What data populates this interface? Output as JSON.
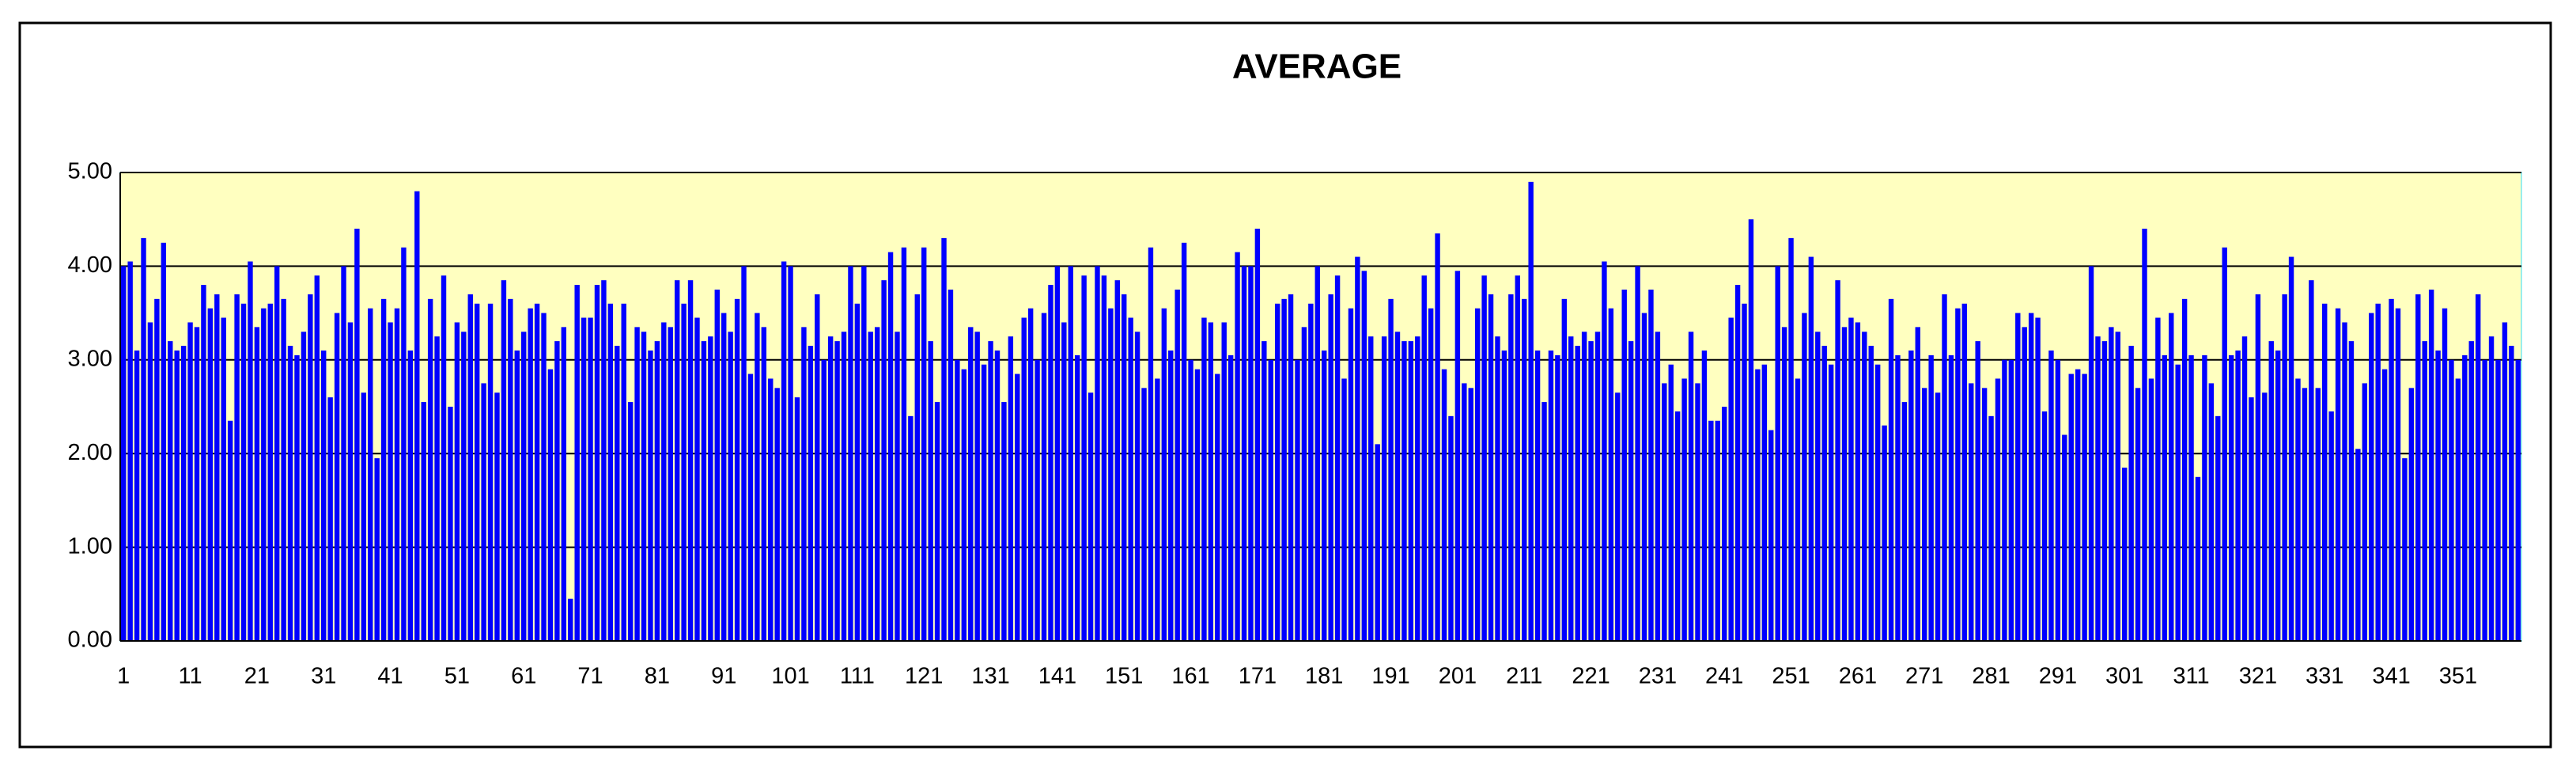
{
  "chart_data": {
    "type": "bar",
    "title": "AVERAGE",
    "categories": [
      "1",
      null,
      null,
      null,
      null,
      null,
      null,
      null,
      null,
      null,
      "11",
      null,
      null,
      null,
      null,
      null,
      null,
      null,
      null,
      null,
      "21",
      null,
      null,
      null,
      null,
      null,
      null,
      null,
      null,
      null,
      "31",
      null,
      null,
      null,
      null,
      null,
      null,
      null,
      null,
      null,
      "41",
      null,
      null,
      null,
      null,
      null,
      null,
      null,
      null,
      null,
      "51",
      null,
      null,
      null,
      null,
      null,
      null,
      null,
      null,
      null,
      "61",
      null,
      null,
      null,
      null,
      null,
      null,
      null,
      null,
      null,
      "71",
      null,
      null,
      null,
      null,
      null,
      null,
      null,
      null,
      null,
      "81",
      null,
      null,
      null,
      null,
      null,
      null,
      null,
      null,
      null,
      "91",
      null,
      null,
      null,
      null,
      null,
      null,
      null,
      null,
      null,
      "101",
      null,
      null,
      null,
      null,
      null,
      null,
      null,
      null,
      null,
      "111",
      null,
      null,
      null,
      null,
      null,
      null,
      null,
      null,
      null,
      "121",
      null,
      null,
      null,
      null,
      null,
      null,
      null,
      null,
      null,
      "131",
      null,
      null,
      null,
      null,
      null,
      null,
      null,
      null,
      null,
      "141",
      null,
      null,
      null,
      null,
      null,
      null,
      null,
      null,
      null,
      "151",
      null,
      null,
      null,
      null,
      null,
      null,
      null,
      null,
      null,
      "161",
      null,
      null,
      null,
      null,
      null,
      null,
      null,
      null,
      null,
      "171",
      null,
      null,
      null,
      null,
      null,
      null,
      null,
      null,
      null,
      "181",
      null,
      null,
      null,
      null,
      null,
      null,
      null,
      null,
      null,
      "191",
      null,
      null,
      null,
      null,
      null,
      null,
      null,
      null,
      null,
      "201",
      null,
      null,
      null,
      null,
      null,
      null,
      null,
      null,
      null,
      "211",
      null,
      null,
      null,
      null,
      null,
      null,
      null,
      null,
      null,
      "221",
      null,
      null,
      null,
      null,
      null,
      null,
      null,
      null,
      null,
      "231",
      null,
      null,
      null,
      null,
      null,
      null,
      null,
      null,
      null,
      "241",
      null,
      null,
      null,
      null,
      null,
      null,
      null,
      null,
      null,
      "251",
      null,
      null,
      null,
      null,
      null,
      null,
      null,
      null,
      null,
      "261",
      null,
      null,
      null,
      null,
      null,
      null,
      null,
      null,
      null,
      "271",
      null,
      null,
      null,
      null,
      null,
      null,
      null,
      null,
      null,
      "281",
      null,
      null,
      null,
      null,
      null,
      null,
      null,
      null,
      null,
      "291",
      null,
      null,
      null,
      null,
      null,
      null,
      null,
      null,
      null,
      "301",
      null,
      null,
      null,
      null,
      null,
      null,
      null,
      null,
      null,
      "311",
      null,
      null,
      null,
      null,
      null,
      null,
      null,
      null,
      null,
      "321",
      null,
      null,
      null,
      null,
      null,
      null,
      null,
      null,
      null,
      "331",
      null,
      null,
      null,
      null,
      null,
      null,
      null,
      null,
      null,
      "341",
      null,
      null,
      null,
      null,
      null,
      null,
      null,
      null,
      null,
      "351",
      null,
      null,
      null,
      null,
      null,
      null,
      null,
      null,
      null
    ],
    "values": [
      4.0,
      4.05,
      3.1,
      4.3,
      3.4,
      3.65,
      4.25,
      3.2,
      3.1,
      3.15,
      3.4,
      3.35,
      3.8,
      3.55,
      3.7,
      3.45,
      2.35,
      3.7,
      3.6,
      4.05,
      3.35,
      3.55,
      3.6,
      4.0,
      3.65,
      3.15,
      3.05,
      3.3,
      3.7,
      3.9,
      3.1,
      2.6,
      3.5,
      4.0,
      3.4,
      4.4,
      2.65,
      3.55,
      1.95,
      3.65,
      3.4,
      3.55,
      4.2,
      3.1,
      4.8,
      2.55,
      3.65,
      3.25,
      3.9,
      2.5,
      3.4,
      3.3,
      3.7,
      3.6,
      2.75,
      3.6,
      2.65,
      3.85,
      3.65,
      3.1,
      3.3,
      3.55,
      3.6,
      3.5,
      2.9,
      3.2,
      3.35,
      0.45,
      3.8,
      3.45,
      3.45,
      3.8,
      3.85,
      3.6,
      3.15,
      3.6,
      2.55,
      3.35,
      3.3,
      3.1,
      3.2,
      3.4,
      3.35,
      3.85,
      3.6,
      3.85,
      3.45,
      3.2,
      3.25,
      3.75,
      3.5,
      3.3,
      3.65,
      4.0,
      2.85,
      3.5,
      3.35,
      2.8,
      2.7,
      4.05,
      4.0,
      2.6,
      3.35,
      3.15,
      3.7,
      3.0,
      3.25,
      3.2,
      3.3,
      4.0,
      3.6,
      4.0,
      3.3,
      3.35,
      3.85,
      4.15,
      3.3,
      4.2,
      2.4,
      3.7,
      4.2,
      3.2,
      2.55,
      4.3,
      3.75,
      3.0,
      2.9,
      3.35,
      3.3,
      2.95,
      3.2,
      3.1,
      2.55,
      3.25,
      2.85,
      3.45,
      3.55,
      3.0,
      3.5,
      3.8,
      4.0,
      3.4,
      4.0,
      3.05,
      3.9,
      2.65,
      4.0,
      3.9,
      3.55,
      3.85,
      3.7,
      3.45,
      3.3,
      2.7,
      4.2,
      2.8,
      3.55,
      3.1,
      3.75,
      4.25,
      3.0,
      2.9,
      3.45,
      3.4,
      2.85,
      3.4,
      3.05,
      4.15,
      4.0,
      4.0,
      4.4,
      3.2,
      3.0,
      3.6,
      3.65,
      3.7,
      3.0,
      3.35,
      3.6,
      4.0,
      3.1,
      3.7,
      3.9,
      2.8,
      3.55,
      4.1,
      3.95,
      3.25,
      2.1,
      3.25,
      3.65,
      3.3,
      3.2,
      3.2,
      3.25,
      3.9,
      3.55,
      4.35,
      2.9,
      2.4,
      3.95,
      2.75,
      2.7,
      3.55,
      3.9,
      3.7,
      3.25,
      3.1,
      3.7,
      3.9,
      3.65,
      4.9,
      3.1,
      2.55,
      3.1,
      3.05,
      3.65,
      3.25,
      3.15,
      3.3,
      3.2,
      3.3,
      4.05,
      3.55,
      2.65,
      3.75,
      3.2,
      4.0,
      3.5,
      3.75,
      3.3,
      2.75,
      2.95,
      2.45,
      2.8,
      3.3,
      2.75,
      3.1,
      2.35,
      2.35,
      2.5,
      3.45,
      3.8,
      3.6,
      4.5,
      2.9,
      2.95,
      2.25,
      4.0,
      3.35,
      4.3,
      2.8,
      3.5,
      4.1,
      3.3,
      3.15,
      2.95,
      3.85,
      3.35,
      3.45,
      3.4,
      3.3,
      3.15,
      2.95,
      2.3,
      3.65,
      3.05,
      2.55,
      3.1,
      3.35,
      2.7,
      3.05,
      2.65,
      3.7,
      3.05,
      3.55,
      3.6,
      2.75,
      3.2,
      2.7,
      2.4,
      2.8,
      3.0,
      3.0,
      3.5,
      3.35,
      3.5,
      3.45,
      2.45,
      3.1,
      3.0,
      2.2,
      2.85,
      2.9,
      2.85,
      4.0,
      3.25,
      3.2,
      3.35,
      3.3,
      1.85,
      3.15,
      2.7,
      4.4,
      2.8,
      3.45,
      3.05,
      3.5,
      2.95,
      3.65,
      3.05,
      1.75,
      3.05,
      2.75,
      2.4,
      4.2,
      3.05,
      3.1,
      3.25,
      2.6,
      3.7,
      2.65,
      3.2,
      3.1,
      3.7,
      4.1,
      2.8,
      2.7,
      3.85,
      2.7,
      3.6,
      2.45,
      3.55,
      3.4,
      3.2,
      2.05,
      2.75,
      3.5,
      3.6,
      2.9,
      3.65,
      3.55,
      1.95,
      2.7,
      3.7,
      3.2,
      3.75,
      3.1,
      3.55,
      3.0,
      2.8,
      3.05,
      3.2,
      3.7,
      3.0,
      3.25,
      3.0,
      3.4,
      3.15,
      3.0
    ],
    "color": "#0000ff",
    "plot_background": "#ffffc0",
    "ylim": [
      0,
      5
    ],
    "yticks": [
      {
        "value": 0,
        "label": "0.00"
      },
      {
        "value": 1,
        "label": "1.00"
      },
      {
        "value": 2,
        "label": "2.00"
      },
      {
        "value": 3,
        "label": "3.00"
      },
      {
        "value": 4,
        "label": "4.00"
      },
      {
        "value": 5,
        "label": "5.00"
      }
    ],
    "grid": true
  }
}
